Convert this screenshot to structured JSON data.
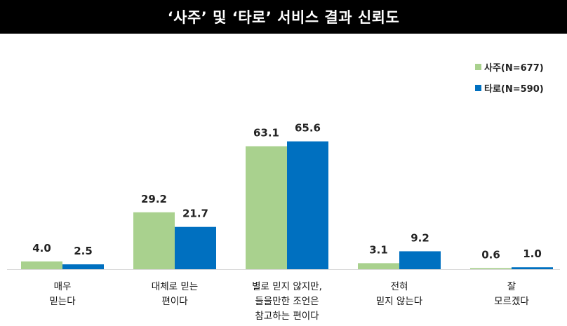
{
  "title": "‘사주’ 및 ‘타로’ 서비스 결과 신뢰도",
  "chart_data": {
    "type": "bar",
    "categories": [
      "매우\n믿는다",
      "대체로 믿는\n편이다",
      "별로 믿지 않지만,\n들을만한 조언은\n참고하는 편이다",
      "전혀\n믿지 않는다",
      "잘\n모르겠다"
    ],
    "series": [
      {
        "name": "사주(N=677)",
        "values": [
          4.0,
          29.2,
          63.1,
          3.1,
          0.6
        ],
        "labels": [
          "4.0",
          "29.2",
          "63.1",
          "3.1",
          "0.6"
        ],
        "color": "#a9d18e"
      },
      {
        "name": "타로(N=590)",
        "values": [
          2.5,
          21.7,
          65.6,
          9.2,
          1.0
        ],
        "labels": [
          "2.5",
          "21.7",
          "65.6",
          "9.2",
          "1.0"
        ],
        "color": "#0070c0"
      }
    ],
    "ylim": [
      0,
      70
    ],
    "grid": false,
    "legend_position": "top-right"
  }
}
